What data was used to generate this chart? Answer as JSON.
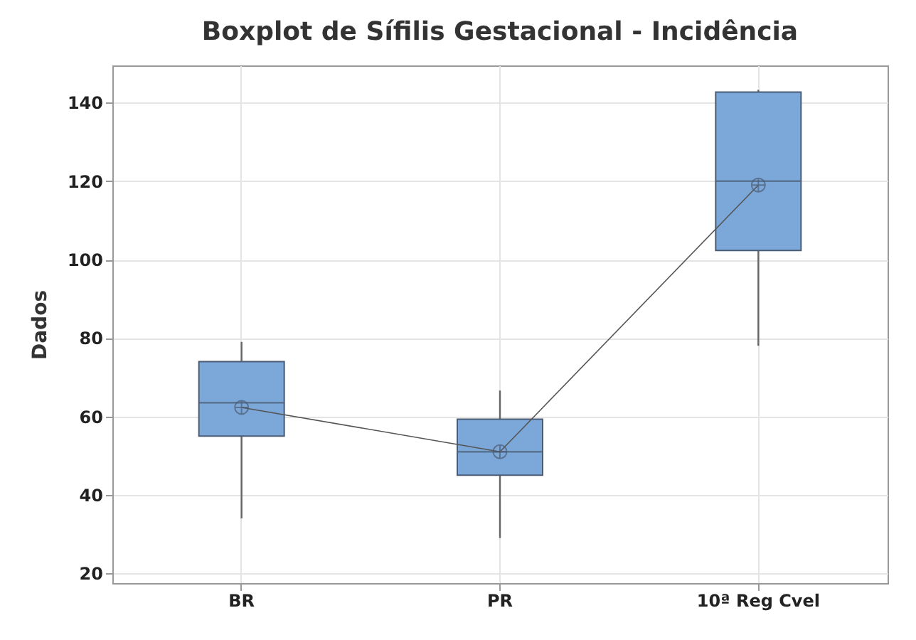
{
  "chart_data": {
    "type": "box",
    "title": "Boxplot de Sífilis Gestacional - Incidência",
    "ylabel": "Dados",
    "categories": [
      "BR",
      "PR",
      "10ª Reg Cvel"
    ],
    "boxes": [
      {
        "low": 34,
        "q1": 55,
        "median": 63.5,
        "q3": 74,
        "high": 79,
        "mean": 62.3
      },
      {
        "low": 29,
        "q1": 45,
        "median": 51,
        "q3": 59.3,
        "high": 66.6,
        "mean": 51
      },
      {
        "low": 78,
        "q1": 102.3,
        "median": 120,
        "q3": 142.7,
        "high": 143.3,
        "mean": 119
      }
    ],
    "color": "#7ba7d9",
    "series": [
      {
        "type": "line",
        "color": "#555555",
        "x": [
          "BR",
          "PR",
          "10ª Reg Cvel"
        ],
        "values": [
          62.3,
          51,
          119
        ]
      }
    ],
    "ylim": [
      17.5,
      149.5
    ],
    "yticks": [
      20,
      40,
      60,
      80,
      100,
      120,
      140
    ],
    "grid": true
  }
}
